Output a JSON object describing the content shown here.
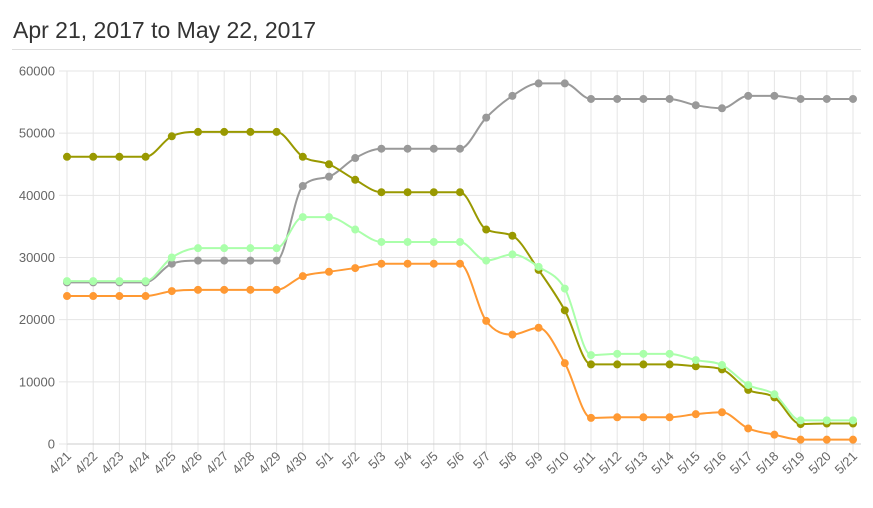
{
  "header": {
    "title": "Apr 21, 2017 to May 22, 2017"
  },
  "chart_data": {
    "type": "line",
    "title": "",
    "xlabel": "",
    "ylabel": "",
    "ylim": [
      0,
      60000
    ],
    "grid": true,
    "legend": "none",
    "y_ticks": [
      0,
      10000,
      20000,
      30000,
      40000,
      50000,
      60000
    ],
    "categories": [
      "4/21",
      "4/22",
      "4/23",
      "4/24",
      "4/25",
      "4/26",
      "4/27",
      "4/28",
      "4/29",
      "4/30",
      "5/1",
      "5/2",
      "5/3",
      "5/4",
      "5/5",
      "5/6",
      "5/7",
      "5/8",
      "5/9",
      "5/10",
      "5/11",
      "5/12",
      "5/13",
      "5/14",
      "5/15",
      "5/16",
      "5/17",
      "5/18",
      "5/19",
      "5/20",
      "5/21"
    ],
    "series": [
      {
        "color": "#999999",
        "values": [
          26000,
          26000,
          26000,
          26000,
          29000,
          29500,
          29500,
          29500,
          29500,
          41500,
          43000,
          46000,
          47500,
          47500,
          47500,
          47500,
          52500,
          56000,
          58000,
          58000,
          55500,
          55500,
          55500,
          55500,
          54500,
          54000,
          56000,
          56000,
          55500,
          55500,
          55500
        ]
      },
      {
        "color": "#999900",
        "values": [
          46200,
          46200,
          46200,
          46200,
          49500,
          50200,
          50200,
          50200,
          50200,
          46200,
          45000,
          42500,
          40500,
          40500,
          40500,
          40500,
          34500,
          33500,
          28000,
          21500,
          12800,
          12800,
          12800,
          12800,
          12500,
          12000,
          8700,
          7500,
          3200,
          3300,
          3300
        ]
      },
      {
        "color": "#aaffaa",
        "values": [
          26200,
          26200,
          26200,
          26200,
          30000,
          31500,
          31500,
          31500,
          31500,
          36500,
          36500,
          34500,
          32500,
          32500,
          32500,
          32500,
          29500,
          30500,
          28500,
          25000,
          14300,
          14500,
          14500,
          14500,
          13500,
          12700,
          9500,
          8000,
          3800,
          3800,
          3800
        ]
      },
      {
        "color": "#ff9933",
        "values": [
          23800,
          23800,
          23800,
          23800,
          24600,
          24800,
          24800,
          24800,
          24800,
          27000,
          27700,
          28300,
          29000,
          29000,
          29000,
          29000,
          19800,
          17600,
          18700,
          13000,
          4200,
          4300,
          4300,
          4300,
          4800,
          5100,
          2500,
          1500,
          700,
          700,
          700
        ]
      }
    ]
  }
}
